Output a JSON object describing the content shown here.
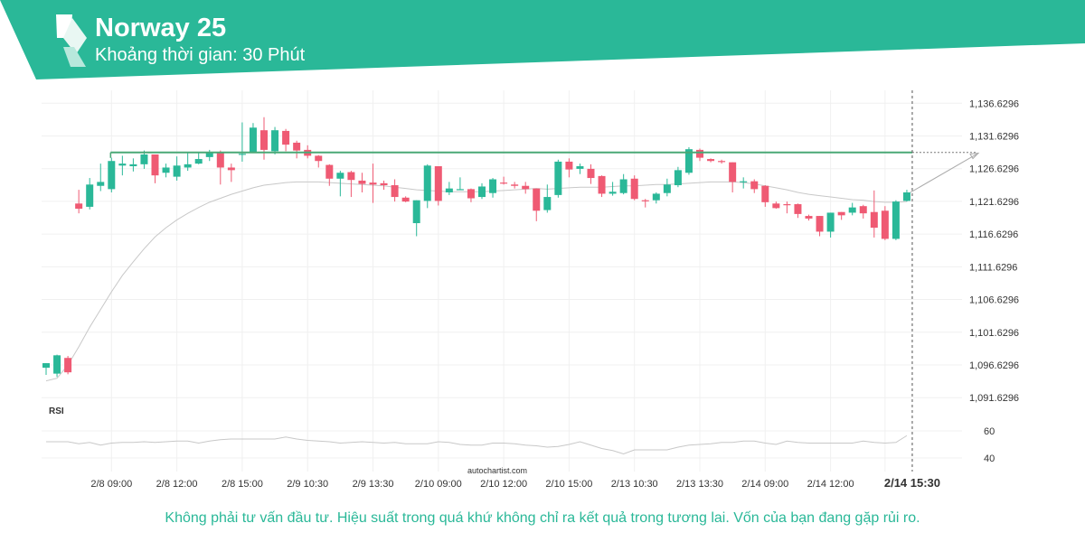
{
  "header": {
    "title": "Norway 25",
    "subtitle": "Khoảng thời gian: 30 Phút",
    "color": "#2ab898"
  },
  "disclaimer": "Không phải tư vấn đầu tư. Hiệu suất trong quá khứ không chỉ ra kết quả trong tương lai. Vốn của bạn đang gặp rủi ro.",
  "watermark": "autochartist.com",
  "colors": {
    "up": "#2ab898",
    "down": "#ef5a73",
    "resistance": "#4aa876",
    "ma": "#c8c8c8",
    "grid": "#f0f0f0"
  },
  "chart_data": {
    "type": "candlestick",
    "y_ticks": [
      "1,136.6296",
      "1,131.6296",
      "1,126.6296",
      "1,121.6296",
      "1,116.6296",
      "1,111.6296",
      "1,106.6296",
      "1,101.6296",
      "1,096.6296",
      "1,091.6296"
    ],
    "ylim": [
      1090.0,
      1138.6
    ],
    "x_ticks": [
      "2/8 09:00",
      "2/8 12:00",
      "2/8 15:00",
      "2/9 10:30",
      "2/9 13:30",
      "2/10 09:00",
      "2/10 12:00",
      "2/10 15:00",
      "2/13 10:30",
      "2/13 13:30",
      "2/14 09:00",
      "2/14 12:00",
      "2/14 15:30"
    ],
    "x_tick_index": [
      6,
      12,
      18,
      24,
      30,
      36,
      42,
      48,
      54,
      60,
      66,
      72,
      77
    ],
    "current_time_label": "2/14 15:30",
    "resistance_level": 1129.1,
    "candles": [
      [
        1096.2,
        1096.9,
        1095.8,
        1095.1
      ],
      [
        1095.3,
        1098.1,
        1098.2,
        1094.8
      ],
      [
        1097.7,
        1095.5,
        1098.0,
        1095.2
      ],
      [
        1121.3,
        1120.5,
        1123.4,
        1119.8
      ],
      [
        1120.8,
        1124.2,
        1125.2,
        1120.4
      ],
      [
        1124.0,
        1124.6,
        1127.4,
        1123.2
      ],
      [
        1123.5,
        1127.8,
        1128.3,
        1123.0
      ],
      [
        1127.1,
        1127.4,
        1128.6,
        1125.6
      ],
      [
        1127.0,
        1127.3,
        1128.2,
        1126.2
      ],
      [
        1127.3,
        1128.8,
        1129.4,
        1126.6
      ],
      [
        1128.8,
        1125.6,
        1128.8,
        1124.4
      ],
      [
        1126.0,
        1126.8,
        1127.4,
        1125.3
      ],
      [
        1125.4,
        1127.1,
        1128.5,
        1124.8
      ],
      [
        1126.8,
        1127.3,
        1129.2,
        1126.3
      ],
      [
        1127.4,
        1128.1,
        1129.1,
        1127.3
      ],
      [
        1128.4,
        1129.0,
        1129.5,
        1127.8
      ],
      [
        1129.0,
        1126.8,
        1129.4,
        1124.2
      ],
      [
        1126.8,
        1126.4,
        1127.4,
        1124.6
      ],
      [
        1128.9,
        1128.9,
        1133.7,
        1127.7
      ],
      [
        1129.0,
        1132.9,
        1133.6,
        1129.0
      ],
      [
        1132.5,
        1129.5,
        1134.5,
        1128.0
      ],
      [
        1129.3,
        1132.5,
        1133.0,
        1128.8
      ],
      [
        1132.4,
        1130.3,
        1132.7,
        1129.3
      ],
      [
        1130.6,
        1129.4,
        1130.9,
        1128.2
      ],
      [
        1129.5,
        1128.6,
        1130.2,
        1128.2
      ],
      [
        1128.6,
        1127.8,
        1128.7,
        1126.8
      ],
      [
        1127.2,
        1125.1,
        1127.3,
        1124.0
      ],
      [
        1125.1,
        1126.0,
        1126.3,
        1122.4
      ],
      [
        1126.1,
        1124.9,
        1126.3,
        1122.3
      ],
      [
        1124.8,
        1124.3,
        1126.0,
        1123.0
      ],
      [
        1124.5,
        1124.2,
        1127.4,
        1121.4
      ],
      [
        1124.4,
        1124.1,
        1124.8,
        1123.4
      ],
      [
        1124.1,
        1122.3,
        1125.0,
        1121.6
      ],
      [
        1122.2,
        1121.6,
        1122.4,
        1121.5
      ],
      [
        1118.3,
        1121.8,
        1121.6,
        1116.3
      ],
      [
        1121.7,
        1127.1,
        1127.3,
        1120.6
      ],
      [
        1127.0,
        1121.7,
        1127.0,
        1121.0
      ],
      [
        1123.0,
        1123.6,
        1124.6,
        1122.6
      ],
      [
        1123.5,
        1123.5,
        1125.3,
        1123.4
      ],
      [
        1123.5,
        1122.1,
        1123.6,
        1121.5
      ],
      [
        1122.3,
        1123.9,
        1124.4,
        1122.0
      ],
      [
        1122.9,
        1125.0,
        1125.2,
        1122.2
      ],
      [
        1124.5,
        1124.4,
        1125.4,
        1124.2
      ],
      [
        1124.2,
        1124.0,
        1124.6,
        1123.6
      ],
      [
        1124.0,
        1123.5,
        1124.6,
        1122.8
      ],
      [
        1123.6,
        1120.2,
        1123.6,
        1118.6
      ],
      [
        1120.3,
        1122.3,
        1124.2,
        1119.9
      ],
      [
        1122.6,
        1127.7,
        1128.0,
        1122.2
      ],
      [
        1127.7,
        1126.5,
        1128.2,
        1125.3
      ],
      [
        1126.6,
        1127.0,
        1127.4,
        1125.8
      ],
      [
        1126.6,
        1125.2,
        1127.3,
        1124.3
      ],
      [
        1125.5,
        1122.8,
        1125.6,
        1122.3
      ],
      [
        1122.8,
        1123.1,
        1124.6,
        1122.5
      ],
      [
        1122.9,
        1125.0,
        1125.8,
        1122.7
      ],
      [
        1125.1,
        1122.0,
        1125.6,
        1121.8
      ],
      [
        1121.8,
        1121.7,
        1122.0,
        1120.7
      ],
      [
        1121.8,
        1122.8,
        1123.0,
        1121.3
      ],
      [
        1122.9,
        1124.2,
        1125.1,
        1122.4
      ],
      [
        1124.1,
        1126.4,
        1126.9,
        1123.8
      ],
      [
        1126.0,
        1129.6,
        1129.9,
        1125.7
      ],
      [
        1129.5,
        1128.3,
        1129.7,
        1127.8
      ],
      [
        1128.1,
        1127.8,
        1128.2,
        1127.6
      ],
      [
        1127.8,
        1127.7,
        1128.0,
        1127.4
      ],
      [
        1127.6,
        1124.6,
        1127.6,
        1123.0
      ],
      [
        1124.6,
        1124.7,
        1125.3,
        1123.6
      ],
      [
        1124.7,
        1123.5,
        1125.0,
        1122.9
      ],
      [
        1124.0,
        1121.5,
        1124.1,
        1120.8
      ],
      [
        1121.3,
        1120.6,
        1121.6,
        1120.5
      ],
      [
        1121.2,
        1121.1,
        1121.6,
        1119.8
      ],
      [
        1121.2,
        1119.7,
        1121.3,
        1119.1
      ],
      [
        1119.4,
        1119.0,
        1119.6,
        1118.7
      ],
      [
        1119.4,
        1117.0,
        1119.4,
        1116.3
      ],
      [
        1117.0,
        1119.9,
        1119.9,
        1116.1
      ],
      [
        1120.0,
        1119.5,
        1120.0,
        1118.8
      ],
      [
        1119.9,
        1120.7,
        1121.4,
        1119.5
      ],
      [
        1120.9,
        1119.8,
        1121.1,
        1119.0
      ],
      [
        1120.0,
        1117.6,
        1123.3,
        1116.1
      ],
      [
        1120.2,
        1115.9,
        1120.9,
        1115.7
      ],
      [
        1115.9,
        1121.6,
        1121.8,
        1115.7
      ],
      [
        1121.7,
        1123.0,
        1123.4,
        1121.6
      ]
    ],
    "moving_average": [
      1094.2,
      1094.6,
      1096.6,
      1099.4,
      1102.4,
      1105.1,
      1107.8,
      1110.3,
      1112.4,
      1114.4,
      1116.2,
      1117.6,
      1118.8,
      1119.8,
      1120.7,
      1121.5,
      1122.1,
      1122.7,
      1123.2,
      1123.7,
      1124.1,
      1124.3,
      1124.5,
      1124.6,
      1124.6,
      1124.6,
      1124.5,
      1124.4,
      1124.3,
      1124.2,
      1124.1,
      1124.0,
      1123.8,
      1123.6,
      1123.4,
      1123.3,
      1123.2,
      1123.1,
      1123.1,
      1123.1,
      1123.1,
      1123.2,
      1123.3,
      1123.4,
      1123.5,
      1123.6,
      1123.5,
      1123.6,
      1123.7,
      1123.8,
      1123.8,
      1123.8,
      1123.9,
      1124.0,
      1124.0,
      1124.1,
      1124.2,
      1124.2,
      1124.3,
      1124.4,
      1124.5,
      1124.6,
      1124.6,
      1124.6,
      1124.5,
      1124.3,
      1124.0,
      1123.7,
      1123.4,
      1123.0,
      1122.7,
      1122.5,
      1122.3,
      1122.1,
      1121.9,
      1121.8,
      1121.6,
      1121.5,
      1121.5,
      1121.6
    ],
    "projection": {
      "from_index": 79,
      "from_value": 1123.0,
      "to_value": 1129.0
    },
    "rsi": {
      "label": "RSI",
      "ticks": [
        60,
        40
      ],
      "ylim": [
        30,
        70
      ],
      "values": [
        52.0,
        52.0,
        52.0,
        50.5,
        51.5,
        49.5,
        51.0,
        51.5,
        51.5,
        52.0,
        51.5,
        52.0,
        52.5,
        52.5,
        51.0,
        52.5,
        53.5,
        54.0,
        54.0,
        54.0,
        54.0,
        54.0,
        55.5,
        54.0,
        53.0,
        52.5,
        52.0,
        51.0,
        51.5,
        52.0,
        51.5,
        51.0,
        51.5,
        50.5,
        50.5,
        50.5,
        52.0,
        51.5,
        50.0,
        49.5,
        49.5,
        51.0,
        51.0,
        50.5,
        49.5,
        49.0,
        48.0,
        48.5,
        50.0,
        52.0,
        49.5,
        47.0,
        45.5,
        43.0,
        46.0,
        46.0,
        46.0,
        46.0,
        48.0,
        49.5,
        50.0,
        50.5,
        51.5,
        51.5,
        52.5,
        52.5,
        51.0,
        50.0,
        52.5,
        51.5,
        51.0,
        51.0,
        51.0,
        51.0,
        51.0,
        52.5,
        51.5,
        51.0,
        51.5,
        56.5
      ]
    }
  }
}
